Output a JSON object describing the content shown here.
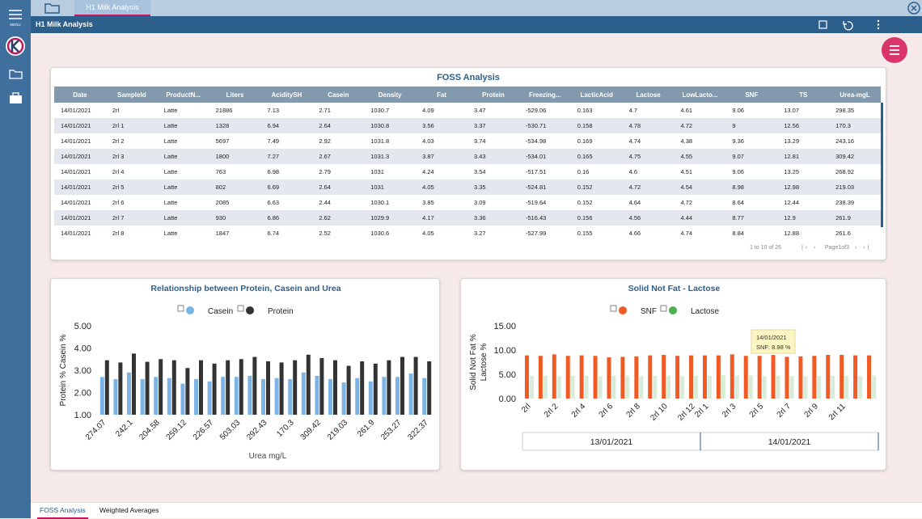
{
  "app": {
    "menu": "MENU",
    "tab": "H1 Milk Analysis",
    "title": "H1 Milk Analysis"
  },
  "table": {
    "title": "FOSS Analysis",
    "columns": [
      "Date",
      "SampleId",
      "ProductN...",
      "Liters",
      "AciditySH",
      "Casein",
      "Density",
      "Fat",
      "Protein",
      "Freezing...",
      "LacticAcid",
      "Lactose",
      "LowLacto...",
      "SNF",
      "TS",
      "Urea-mgL"
    ],
    "rows": [
      [
        "14/01/2021",
        "2rl",
        "Latte",
        "21886",
        "7.13",
        "2.71",
        "1030.7",
        "4.09",
        "3.47",
        "-529.06",
        "0.163",
        "4.7",
        "4.61",
        "9.06",
        "13.07",
        "298.35"
      ],
      [
        "14/01/2021",
        "2rl 1",
        "Latte",
        "1328",
        "6.94",
        "2.64",
        "1030.8",
        "3.56",
        "3.37",
        "-530.71",
        "0.158",
        "4.78",
        "4.72",
        "9",
        "12.56",
        "170.3"
      ],
      [
        "14/01/2021",
        "2rl 2",
        "Latte",
        "5697",
        "7.49",
        "2.92",
        "1031.8",
        "4.03",
        "3.74",
        "-534.98",
        "0.169",
        "4.74",
        "4.38",
        "9.36",
        "13.29",
        "243.16"
      ],
      [
        "14/01/2021",
        "2rl 3",
        "Latte",
        "1800",
        "7.27",
        "2.67",
        "1031.3",
        "3.87",
        "3.43",
        "-534.01",
        "0.165",
        "4.75",
        "4.55",
        "9.07",
        "12.81",
        "309.42"
      ],
      [
        "14/01/2021",
        "2rl 4",
        "Latte",
        "763",
        "6.98",
        "2.79",
        "1031",
        "4.24",
        "3.54",
        "-517.51",
        "0.16",
        "4.6",
        "4.51",
        "9.06",
        "13.25",
        "268.92"
      ],
      [
        "14/01/2021",
        "2rl 5",
        "Latte",
        "802",
        "6.69",
        "2.64",
        "1031",
        "4.05",
        "3.35",
        "-524.81",
        "0.152",
        "4.72",
        "4.54",
        "8.98",
        "12.98",
        "219.03"
      ],
      [
        "14/01/2021",
        "2rl 6",
        "Latte",
        "2085",
        "6.63",
        "2.44",
        "1030.1",
        "3.85",
        "3.09",
        "-519.64",
        "0.152",
        "4.64",
        "4.72",
        "8.64",
        "12.44",
        "238.39"
      ],
      [
        "14/01/2021",
        "2rl 7",
        "Latte",
        "930",
        "6.86",
        "2.62",
        "1029.9",
        "4.17",
        "3.36",
        "-516.43",
        "0.156",
        "4.56",
        "4.44",
        "8.77",
        "12.9",
        "261.9"
      ],
      [
        "14/01/2021",
        "2rl 8",
        "Latte",
        "1847",
        "6.74",
        "2.52",
        "1030.6",
        "4.05",
        "3.27",
        "-527.99",
        "0.155",
        "4.66",
        "4.74",
        "8.84",
        "12.88",
        "261.6"
      ]
    ],
    "range": "1 to 10 of 26",
    "page": "Page1of3"
  },
  "chart_data": [
    {
      "type": "bar",
      "title": "Relationship between Protein, Casein and Urea",
      "xlabel": "Urea mg/L",
      "ylabel": [
        "Protein % Casein %"
      ],
      "categories": [
        "274.07",
        null,
        "242.1",
        null,
        "204.58",
        null,
        "259.12",
        null,
        "226.57",
        null,
        "503.03",
        null,
        "292.43",
        null,
        "170.3",
        null,
        "309.42",
        null,
        "219.03",
        null,
        "261.9",
        null,
        "253.27",
        null,
        "322.37"
      ],
      "series": [
        {
          "name": "Casein",
          "color": "#7db4e6",
          "values": [
            2.7,
            2.6,
            2.9,
            2.6,
            2.7,
            2.65,
            2.4,
            2.6,
            2.5,
            2.7,
            2.7,
            2.75,
            2.6,
            2.65,
            2.6,
            2.9,
            2.75,
            2.6,
            2.45,
            2.65,
            2.5,
            2.7,
            2.7,
            2.85,
            2.65
          ]
        },
        {
          "name": "Protein",
          "color": "#333333",
          "values": [
            3.45,
            3.35,
            3.75,
            3.38,
            3.5,
            3.45,
            3.1,
            3.45,
            3.3,
            3.45,
            3.5,
            3.6,
            3.4,
            3.35,
            3.45,
            3.7,
            3.55,
            3.45,
            3.2,
            3.4,
            3.3,
            3.45,
            3.6,
            3.6,
            3.4
          ]
        }
      ],
      "ylim": [
        1,
        5
      ],
      "yticks": [
        {
          "value": 1,
          "label": "1.00"
        },
        {
          "value": 2,
          "label": "2.00"
        },
        {
          "value": 3,
          "label": "3.00"
        },
        {
          "value": 4,
          "label": "4.00"
        },
        {
          "value": 5,
          "label": "5.00"
        }
      ]
    },
    {
      "type": "bar",
      "title": "Solid Not Fat - Lactose",
      "ylabel": [
        "Solid Not Fat %",
        "Lactose %"
      ],
      "categories": [
        "2rl",
        null,
        "2rl 2",
        null,
        "2rl 4",
        null,
        "2rl 6",
        null,
        "2rl 8",
        null,
        "2rl 10",
        null,
        "2rl 12",
        "2rl 1",
        null,
        "2rl 3",
        null,
        "2rl 5",
        null,
        "2rl 7",
        null,
        "2rl 9",
        null,
        "2rl 11",
        null,
        null
      ],
      "x_groups": [
        "13/01/2021",
        "14/01/2021"
      ],
      "series": [
        {
          "name": "SNF",
          "color": "#f05a24",
          "values": [
            8.9,
            8.8,
            9.1,
            8.8,
            8.9,
            8.8,
            8.5,
            8.6,
            8.7,
            8.9,
            9.0,
            8.8,
            8.9,
            8.9,
            8.9,
            9.1,
            8.8,
            8.8,
            8.98,
            8.6,
            8.7,
            8.8,
            9.0,
            9.0,
            8.9,
            8.9
          ]
        },
        {
          "name": "Lactose",
          "color": "#4caf50",
          "values": [
            4.7,
            4.7,
            4.6,
            4.7,
            4.7,
            4.6,
            4.7,
            4.7,
            4.6,
            4.7,
            4.7,
            4.6,
            4.7,
            4.7,
            4.78,
            4.74,
            4.75,
            4.6,
            4.72,
            4.64,
            4.56,
            4.66,
            4.7,
            4.7,
            4.6,
            4.7
          ]
        }
      ],
      "ylim": [
        0,
        15
      ],
      "yticks": [
        {
          "value": 0,
          "label": "0.00"
        },
        {
          "value": 5,
          "label": "5.00"
        },
        {
          "value": 10,
          "label": "10.00"
        },
        {
          "value": 15,
          "label": "15.00"
        }
      ],
      "tooltip": {
        "title": "14/01/2021",
        "text": "SNF: 8.98 %"
      }
    }
  ],
  "bottom_tabs": [
    "FOSS Analysis",
    "Weighted Averages"
  ]
}
